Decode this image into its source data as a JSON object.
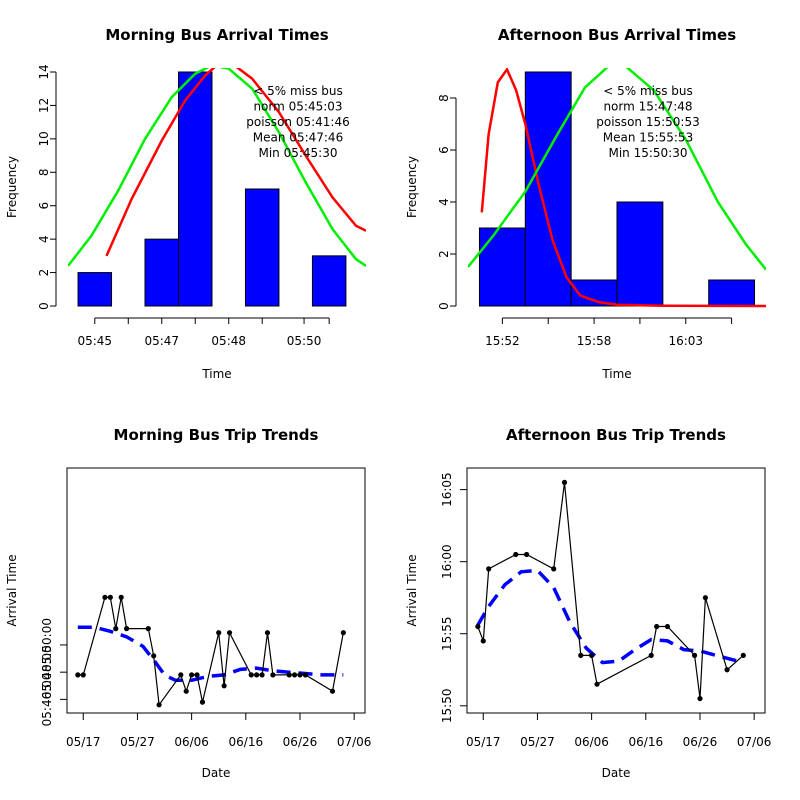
{
  "chart_data": [
    {
      "id": "morning-arrivals",
      "type": "bar",
      "title": "Morning Bus Arrival Times",
      "xlabel": "Time",
      "ylabel": "Frequency",
      "ylim": [
        0,
        14
      ],
      "y_ticks": [
        0,
        2,
        4,
        6,
        8,
        10,
        12,
        14
      ],
      "x_ticks": [
        {
          "pos": 0.5,
          "label": "05:45"
        },
        {
          "pos": 2.5,
          "label": "05:47"
        },
        {
          "pos": 4.5,
          "label": "05:48"
        },
        {
          "pos": 6.75,
          "label": "05:50"
        }
      ],
      "bars": [
        {
          "x0": 0,
          "x1": 1,
          "value": 2
        },
        {
          "x0": 1,
          "x1": 2,
          "value": 0
        },
        {
          "x0": 2,
          "x1": 3,
          "value": 4
        },
        {
          "x0": 3,
          "x1": 4,
          "value": 14
        },
        {
          "x0": 4,
          "x1": 5,
          "value": 0
        },
        {
          "x0": 5,
          "x1": 6,
          "value": 7
        },
        {
          "x0": 6,
          "x1": 7,
          "value": 0
        },
        {
          "x0": 7,
          "x1": 8,
          "value": 3
        }
      ],
      "x_domain": [
        -0.3,
        8.6
      ],
      "curves": [
        {
          "color": "#ff0000",
          "points": [
            [
              0.85,
              3
            ],
            [
              1.6,
              6.4
            ],
            [
              2.5,
              9.9
            ],
            [
              3.2,
              12.3
            ],
            [
              3.8,
              13.8
            ],
            [
              4.2,
              14.5
            ],
            [
              4.6,
              14.5
            ],
            [
              5.2,
              13.6
            ],
            [
              6.0,
              11.6
            ],
            [
              6.8,
              9.0
            ],
            [
              7.6,
              6.5
            ],
            [
              8.3,
              4.8
            ],
            [
              8.6,
              4.5
            ]
          ]
        },
        {
          "color": "#00ee00",
          "points": [
            [
              -0.3,
              2.4
            ],
            [
              0.4,
              4.2
            ],
            [
              1.2,
              6.9
            ],
            [
              2.0,
              10.0
            ],
            [
              2.8,
              12.5
            ],
            [
              3.5,
              13.9
            ],
            [
              4.0,
              14.4
            ],
            [
              4.5,
              14.2
            ],
            [
              5.2,
              13.0
            ],
            [
              6.0,
              10.4
            ],
            [
              6.8,
              7.4
            ],
            [
              7.6,
              4.6
            ],
            [
              8.3,
              2.8
            ],
            [
              8.6,
              2.4
            ]
          ]
        }
      ],
      "annotations": [
        "< 5% miss bus",
        "norm  05:45:03",
        "poisson  05:41:46",
        "Mean  05:47:46",
        "Min  05:45:30"
      ]
    },
    {
      "id": "afternoon-arrivals",
      "type": "bar",
      "title": "Afternoon Bus Arrival Times",
      "xlabel": "Time",
      "ylabel": "Frequency",
      "ylim": [
        0,
        9
      ],
      "y_ticks": [
        0,
        2,
        4,
        6,
        8
      ],
      "x_ticks": [
        {
          "pos": 0.5,
          "label": "15:52"
        },
        {
          "pos": 2.5,
          "label": "15:58"
        },
        {
          "pos": 4.5,
          "label": "16:03"
        },
        {
          "pos": 5.5,
          "label": ""
        }
      ],
      "bars": [
        {
          "x0": 0,
          "x1": 1,
          "value": 3
        },
        {
          "x0": 1,
          "x1": 2,
          "value": 9
        },
        {
          "x0": 2,
          "x1": 3,
          "value": 1
        },
        {
          "x0": 3,
          "x1": 4,
          "value": 4
        },
        {
          "x0": 4,
          "x1": 5,
          "value": 0
        },
        {
          "x0": 5,
          "x1": 6,
          "value": 1
        }
      ],
      "x_domain": [
        -0.25,
        6.25
      ],
      "curves": [
        {
          "color": "#ff0000",
          "points": [
            [
              0.05,
              3.6
            ],
            [
              0.2,
              6.6
            ],
            [
              0.4,
              8.6
            ],
            [
              0.6,
              9.1
            ],
            [
              0.8,
              8.3
            ],
            [
              1.0,
              7.0
            ],
            [
              1.3,
              4.6
            ],
            [
              1.6,
              2.5
            ],
            [
              1.9,
              1.1
            ],
            [
              2.2,
              0.4
            ],
            [
              2.6,
              0.15
            ],
            [
              3.0,
              0.05
            ],
            [
              4.0,
              0.01
            ],
            [
              6.25,
              0.0
            ]
          ]
        },
        {
          "color": "#00ee00",
          "points": [
            [
              -0.25,
              1.5
            ],
            [
              0.3,
              2.7
            ],
            [
              1.0,
              4.4
            ],
            [
              1.7,
              6.6
            ],
            [
              2.3,
              8.4
            ],
            [
              2.8,
              9.2
            ],
            [
              3.2,
              9.2
            ],
            [
              3.8,
              8.3
            ],
            [
              4.5,
              6.4
            ],
            [
              5.2,
              4.0
            ],
            [
              5.8,
              2.4
            ],
            [
              6.25,
              1.4
            ]
          ]
        }
      ],
      "annotations": [
        "< 5% miss bus",
        "norm  15:47:48",
        "poisson  15:50:53",
        "Mean  15:55:53",
        "Min  15:50:30"
      ]
    },
    {
      "id": "morning-trends",
      "type": "line",
      "title": "Morning Bus Trip Trends",
      "xlabel": "Date",
      "ylabel": "Arrival Time",
      "xlim": [
        -3,
        52
      ],
      "ylim": [
        285,
        303
      ],
      "x_ticks": [
        {
          "pos": 0,
          "label": "05/17"
        },
        {
          "pos": 10,
          "label": "05/27"
        },
        {
          "pos": 20,
          "label": "06/06"
        },
        {
          "pos": 30,
          "label": "06/16"
        },
        {
          "pos": 40,
          "label": "06/26"
        },
        {
          "pos": 50,
          "label": "07/06"
        }
      ],
      "y_ticks": [
        {
          "pos": 286,
          "label": "05:46:00"
        },
        {
          "pos": 288,
          "label": "05:48:00"
        },
        {
          "pos": 290,
          "label": "05:50:00"
        }
      ],
      "points": [
        [
          -1,
          287.8
        ],
        [
          0,
          287.8
        ],
        [
          4,
          293.5
        ],
        [
          5,
          293.5
        ],
        [
          6,
          291.2
        ],
        [
          7,
          293.5
        ],
        [
          8,
          291.2
        ],
        [
          12,
          291.2
        ],
        [
          13,
          289.2
        ],
        [
          14,
          285.6
        ],
        [
          18,
          287.8
        ],
        [
          19,
          286.6
        ],
        [
          20,
          287.8
        ],
        [
          21,
          287.8
        ],
        [
          22,
          285.8
        ],
        [
          25,
          290.9
        ],
        [
          26,
          287
        ],
        [
          27,
          290.9
        ],
        [
          31,
          287.8
        ],
        [
          32,
          287.8
        ],
        [
          33,
          287.8
        ],
        [
          34,
          290.9
        ],
        [
          35,
          287.8
        ],
        [
          38,
          287.8
        ],
        [
          39,
          287.8
        ],
        [
          40,
          287.8
        ],
        [
          41,
          287.8
        ],
        [
          46,
          286.6
        ],
        [
          48,
          290.9
        ]
      ],
      "trend": [
        [
          -1,
          291.3
        ],
        [
          2,
          291.3
        ],
        [
          5,
          291
        ],
        [
          8,
          290.6
        ],
        [
          11,
          289.9
        ],
        [
          13,
          288.9
        ],
        [
          15,
          287.8
        ],
        [
          17,
          287.4
        ],
        [
          20,
          287.4
        ],
        [
          23,
          287.7
        ],
        [
          26,
          287.8
        ],
        [
          29,
          288.2
        ],
        [
          32,
          288.3
        ],
        [
          35,
          288.1
        ],
        [
          38,
          288.0
        ],
        [
          41,
          287.9
        ],
        [
          44,
          287.8
        ],
        [
          48,
          287.8
        ]
      ]
    },
    {
      "id": "afternoon-trends",
      "type": "line",
      "title": "Afternoon Bus Trip Trends",
      "xlabel": "Date",
      "ylabel": "Arrival Time",
      "xlim": [
        -3,
        52
      ],
      "ylim": [
        949.5,
        966.5
      ],
      "x_ticks": [
        {
          "pos": 0,
          "label": "05/17"
        },
        {
          "pos": 10,
          "label": "05/27"
        },
        {
          "pos": 20,
          "label": "06/06"
        },
        {
          "pos": 30,
          "label": "06/16"
        },
        {
          "pos": 40,
          "label": "06/26"
        },
        {
          "pos": 50,
          "label": "07/06"
        }
      ],
      "y_ticks": [
        {
          "pos": 950,
          "label": "15:50"
        },
        {
          "pos": 955,
          "label": "15:55"
        },
        {
          "pos": 960,
          "label": "16:00"
        },
        {
          "pos": 965,
          "label": "16:05"
        }
      ],
      "points": [
        [
          -1,
          955.5
        ],
        [
          0,
          954.5
        ],
        [
          1,
          959.5
        ],
        [
          6,
          960.5
        ],
        [
          8,
          960.5
        ],
        [
          13,
          959.5
        ],
        [
          15,
          965.5
        ],
        [
          18,
          953.5
        ],
        [
          20,
          953.5
        ],
        [
          21,
          951.5
        ],
        [
          31,
          953.5
        ],
        [
          32,
          955.5
        ],
        [
          34,
          955.5
        ],
        [
          39,
          953.5
        ],
        [
          40,
          950.5
        ],
        [
          41,
          957.5
        ],
        [
          45,
          952.5
        ],
        [
          48,
          953.5
        ]
      ],
      "trend": [
        [
          -1,
          955.6
        ],
        [
          1,
          956.9
        ],
        [
          4,
          958.4
        ],
        [
          7,
          959.3
        ],
        [
          10,
          959.4
        ],
        [
          13,
          958.2
        ],
        [
          16,
          955.8
        ],
        [
          19,
          954
        ],
        [
          22,
          953.0
        ],
        [
          25,
          953.1
        ],
        [
          28,
          953.9
        ],
        [
          31,
          954.6
        ],
        [
          34,
          954.5
        ],
        [
          37,
          953.9
        ],
        [
          40,
          953.8
        ],
        [
          43,
          953.5
        ],
        [
          48,
          953
        ]
      ]
    }
  ]
}
